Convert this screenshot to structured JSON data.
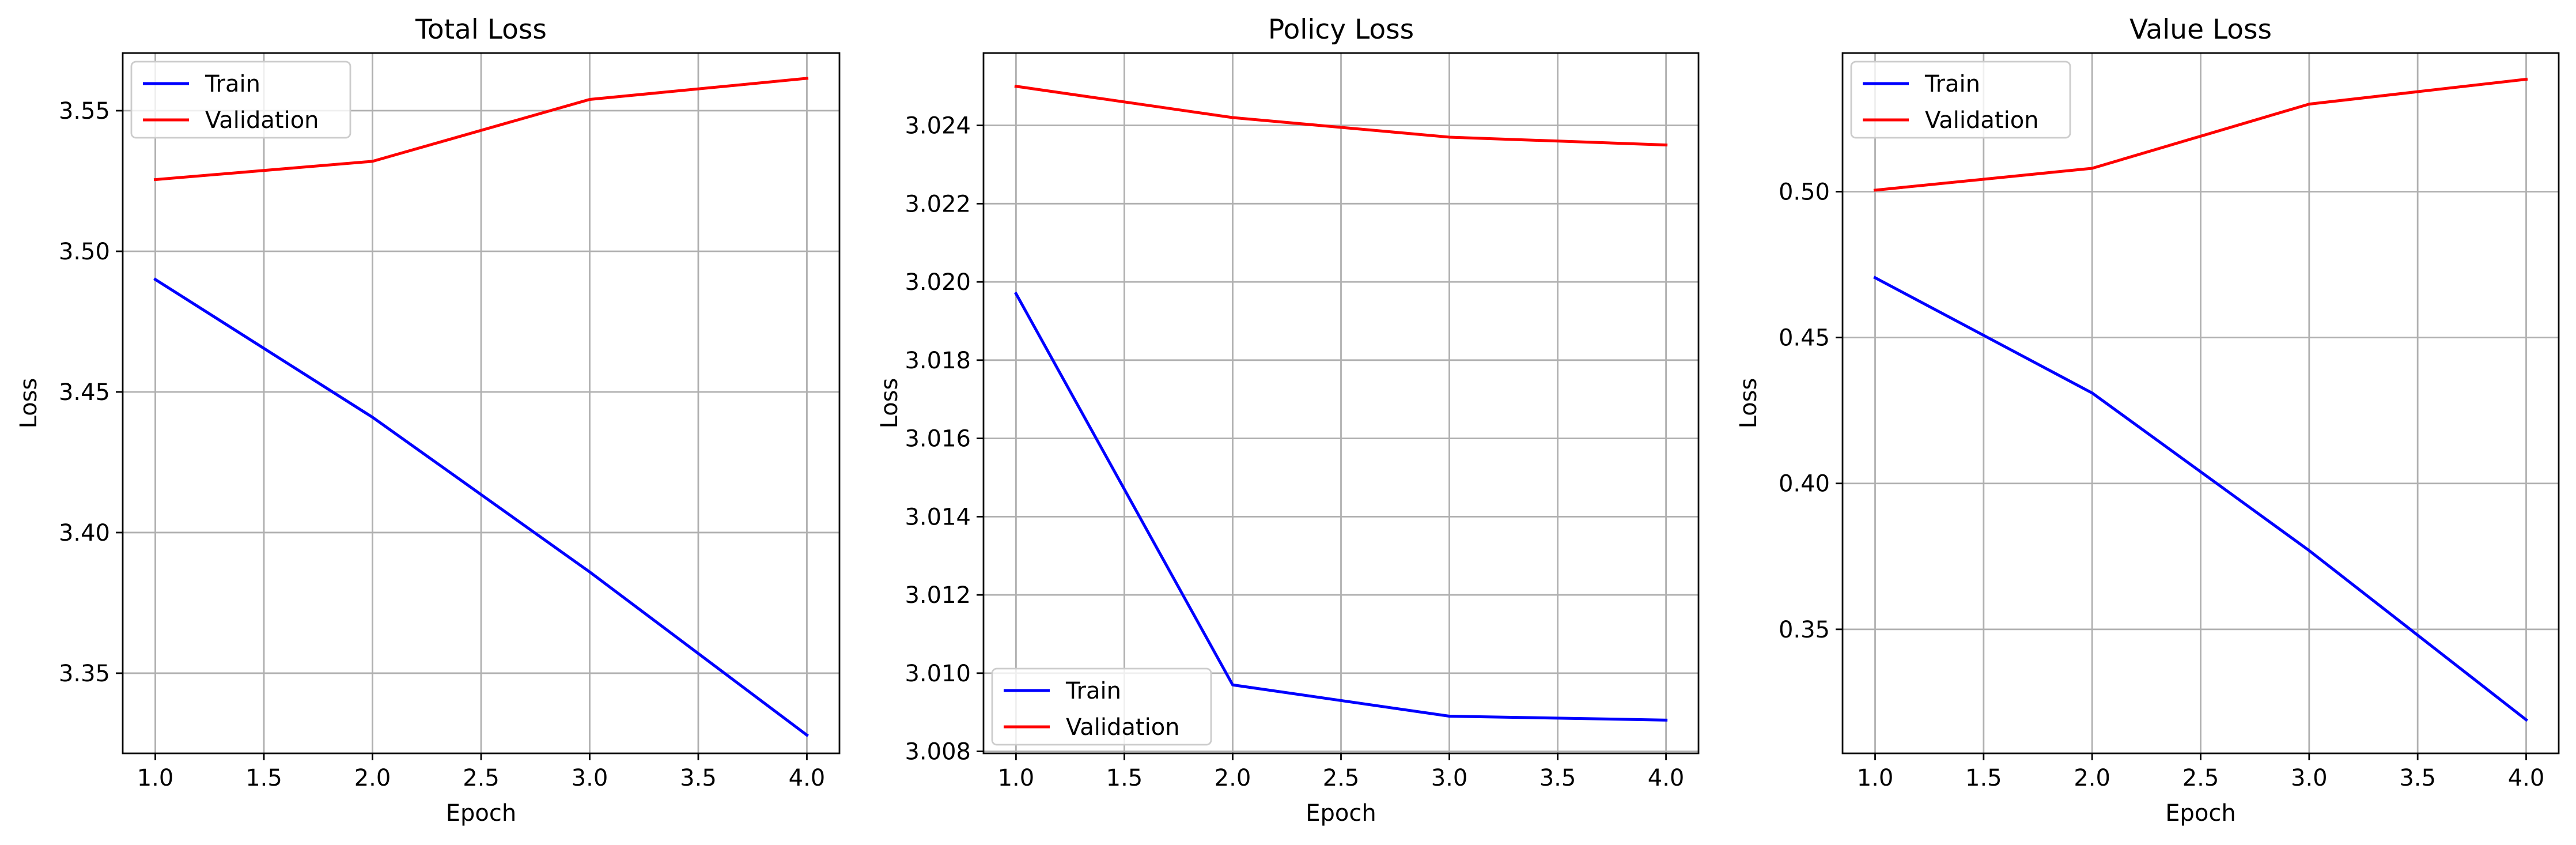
{
  "figure": {
    "background": "#ffffff",
    "grid_color": "#b0b0b0",
    "frame_color": "#000000"
  },
  "chart_data": [
    {
      "type": "line",
      "title": "Total Loss",
      "xlabel": "Epoch",
      "ylabel": "Loss",
      "grid": true,
      "legend_location": "upper-left",
      "xlim": [
        0.85,
        4.15
      ],
      "ylim": [
        3.3215,
        3.5705
      ],
      "xticks": [
        1.0,
        1.5,
        2.0,
        2.5,
        3.0,
        3.5,
        4.0
      ],
      "xtick_labels": [
        "1.0",
        "1.5",
        "2.0",
        "2.5",
        "3.0",
        "3.5",
        "4.0"
      ],
      "yticks": [
        3.35,
        3.4,
        3.45,
        3.5,
        3.55
      ],
      "ytick_labels": [
        "3.35",
        "3.40",
        "3.45",
        "3.50",
        "3.55"
      ],
      "x": [
        1,
        2,
        3,
        4
      ],
      "series": [
        {
          "name": "Train",
          "color": "#0000ff",
          "values": [
            3.49,
            3.441,
            3.386,
            3.328
          ]
        },
        {
          "name": "Validation",
          "color": "#ff0000",
          "values": [
            3.5255,
            3.532,
            3.554,
            3.5615
          ]
        }
      ]
    },
    {
      "type": "line",
      "title": "Policy Loss",
      "xlabel": "Epoch",
      "ylabel": "Loss",
      "grid": true,
      "legend_location": "lower-left",
      "xlim": [
        0.85,
        4.15
      ],
      "ylim": [
        3.00795,
        3.02585
      ],
      "xticks": [
        1.0,
        1.5,
        2.0,
        2.5,
        3.0,
        3.5,
        4.0
      ],
      "xtick_labels": [
        "1.0",
        "1.5",
        "2.0",
        "2.5",
        "3.0",
        "3.5",
        "4.0"
      ],
      "yticks": [
        3.008,
        3.01,
        3.012,
        3.014,
        3.016,
        3.018,
        3.02,
        3.022,
        3.024
      ],
      "ytick_labels": [
        "3.008",
        "3.010",
        "3.012",
        "3.014",
        "3.016",
        "3.018",
        "3.020",
        "3.022",
        "3.024"
      ],
      "x": [
        1,
        2,
        3,
        4
      ],
      "series": [
        {
          "name": "Train",
          "color": "#0000ff",
          "values": [
            3.0197,
            3.0097,
            3.0089,
            3.0088
          ]
        },
        {
          "name": "Validation",
          "color": "#ff0000",
          "values": [
            3.025,
            3.0242,
            3.0237,
            3.0235
          ]
        }
      ]
    },
    {
      "type": "line",
      "title": "Value Loss",
      "xlabel": "Epoch",
      "ylabel": "Loss",
      "grid": true,
      "legend_location": "upper-left",
      "xlim": [
        0.85,
        4.15
      ],
      "ylim": [
        0.3075,
        0.5475
      ],
      "xticks": [
        1.0,
        1.5,
        2.0,
        2.5,
        3.0,
        3.5,
        4.0
      ],
      "xtick_labels": [
        "1.0",
        "1.5",
        "2.0",
        "2.5",
        "3.0",
        "3.5",
        "4.0"
      ],
      "yticks": [
        0.35,
        0.4,
        0.45,
        0.5
      ],
      "ytick_labels": [
        "0.35",
        "0.40",
        "0.45",
        "0.50"
      ],
      "x": [
        1,
        2,
        3,
        4
      ],
      "series": [
        {
          "name": "Train",
          "color": "#0000ff",
          "values": [
            0.4705,
            0.431,
            0.377,
            0.319
          ]
        },
        {
          "name": "Validation",
          "color": "#ff0000",
          "values": [
            0.5005,
            0.508,
            0.53,
            0.5385
          ]
        }
      ]
    }
  ]
}
